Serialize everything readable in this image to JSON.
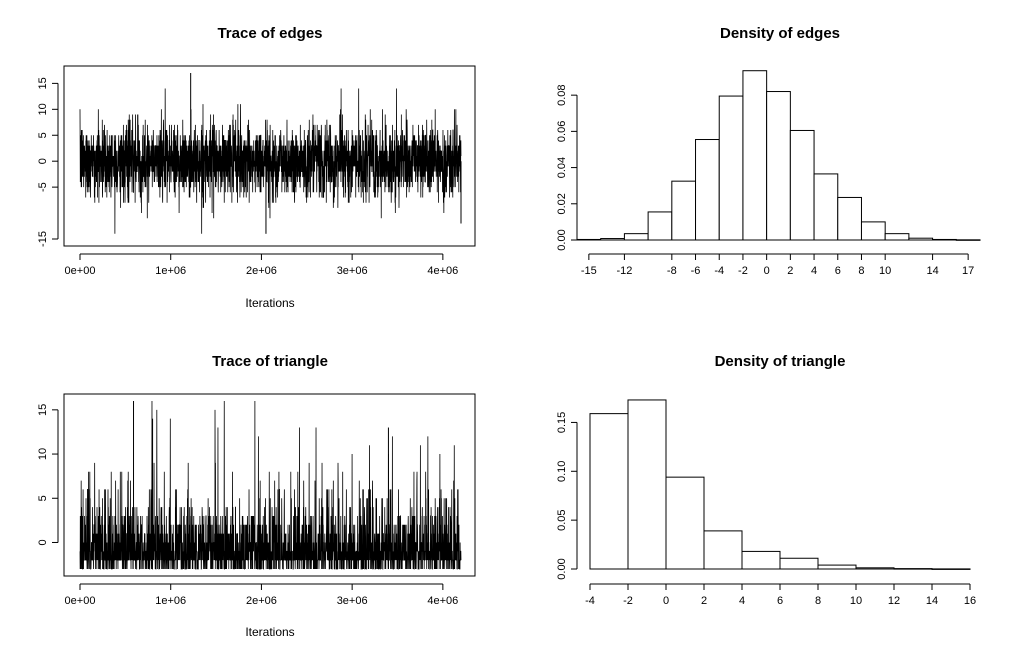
{
  "chart_data": [
    {
      "type": "line",
      "title": "Trace of edges",
      "xlabel": "Iterations",
      "ylabel": "",
      "xlim": [
        0,
        4200000
      ],
      "ylim": [
        -15,
        17
      ],
      "x_ticks": [
        0,
        1000000,
        2000000,
        3000000,
        4000000
      ],
      "x_tick_labels": [
        "0e+00",
        "1e+06",
        "2e+06",
        "3e+06",
        "4e+06"
      ],
      "y_ticks": [
        -15,
        -5,
        0,
        5,
        10,
        15
      ],
      "y_tick_labels": [
        "-15",
        "-5",
        "0",
        "5",
        "10",
        "15"
      ],
      "series_summary": {
        "min": -14,
        "max": 17,
        "typical_low": -7,
        "typical_high": 8,
        "center": 0
      }
    },
    {
      "type": "bar",
      "title": "Density of edges",
      "xlabel": "",
      "ylabel": "",
      "bin_edges": [
        -16,
        -14,
        -12,
        -10,
        -8,
        -6,
        -4,
        -2,
        0,
        2,
        4,
        6,
        8,
        10,
        12,
        14,
        16,
        18
      ],
      "values": [
        0.0003,
        0.0008,
        0.0035,
        0.0155,
        0.0325,
        0.0555,
        0.0795,
        0.0935,
        0.082,
        0.0605,
        0.0365,
        0.0235,
        0.01,
        0.0035,
        0.001,
        0.0003,
        0.0001
      ],
      "xlim": [
        -16,
        18
      ],
      "ylim": [
        0,
        0.095
      ],
      "x_ticks": [
        -15,
        -12,
        -8,
        -6,
        -4,
        -2,
        0,
        2,
        4,
        6,
        8,
        10,
        14,
        17
      ],
      "x_tick_labels": [
        "-15",
        "-12",
        "-8",
        "-6",
        "-4",
        "-2",
        "0",
        "2",
        "4",
        "6",
        "8",
        "10",
        "14",
        "17"
      ],
      "y_ticks": [
        0,
        0.02,
        0.04,
        0.06,
        0.08
      ],
      "y_tick_labels": [
        "0.00",
        "0.02",
        "0.04",
        "0.06",
        "0.08"
      ]
    },
    {
      "type": "line",
      "title": "Trace of triangle",
      "xlabel": "Iterations",
      "ylabel": "",
      "xlim": [
        0,
        4200000
      ],
      "ylim": [
        -3,
        16
      ],
      "x_ticks": [
        0,
        1000000,
        2000000,
        3000000,
        4000000
      ],
      "x_tick_labels": [
        "0e+00",
        "1e+06",
        "2e+06",
        "3e+06",
        "4e+06"
      ],
      "y_ticks": [
        0,
        5,
        10,
        15
      ],
      "y_tick_labels": [
        "0",
        "5",
        "10",
        "15"
      ],
      "series_summary": {
        "min": -3,
        "max": 16,
        "typical_low": -3,
        "typical_high": 5,
        "center": 0
      }
    },
    {
      "type": "bar",
      "title": "Density of triangle",
      "xlabel": "",
      "ylabel": "",
      "bin_edges": [
        -4,
        -2,
        0,
        2,
        4,
        6,
        8,
        10,
        12,
        14,
        16
      ],
      "values": [
        0.159,
        0.173,
        0.094,
        0.039,
        0.018,
        0.011,
        0.004,
        0.0012,
        0.0004,
        0.0001
      ],
      "xlim": [
        -4,
        16
      ],
      "ylim": [
        0,
        0.175
      ],
      "x_ticks": [
        -4,
        -2,
        0,
        2,
        4,
        6,
        8,
        10,
        12,
        14,
        16
      ],
      "x_tick_labels": [
        "-4",
        "-2",
        "0",
        "2",
        "4",
        "6",
        "8",
        "10",
        "12",
        "14",
        "16"
      ],
      "y_ticks": [
        0,
        0.05,
        0.1,
        0.15
      ],
      "y_tick_labels": [
        "0.00",
        "0.05",
        "0.10",
        "0.15"
      ]
    }
  ]
}
